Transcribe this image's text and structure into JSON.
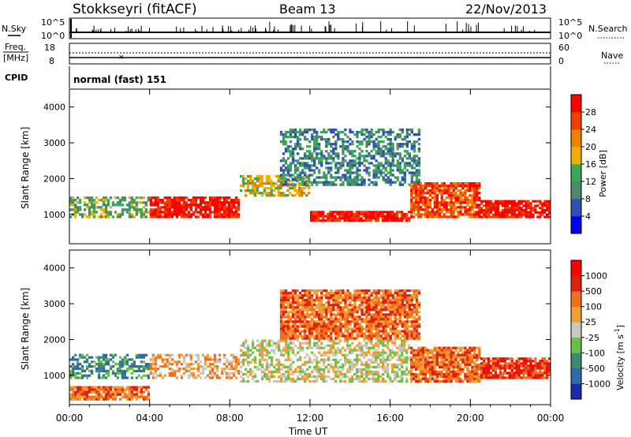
{
  "header": {
    "station": "Stokkseyri (fitACF)",
    "beam": "Beam 13",
    "date": "22/Nov/2013"
  },
  "top_panels": {
    "nsky_label": "N.Sky",
    "nsky_ticks": [
      "10^5",
      "10^0"
    ],
    "nsearch_label": "N.Search",
    "nsearch_ticks": [
      "10^5",
      "10^0"
    ],
    "freq_label_1": "Freq.",
    "freq_label_2": "[MHz]",
    "freq_ticks": [
      "18",
      "8"
    ],
    "nave_label": "Nave",
    "nave_ticks": [
      "60",
      "0"
    ],
    "cpid_label": "CPID",
    "cpid_value": "normal (fast) 151"
  },
  "colors": {
    "power": [
      "#0000ff",
      "#2f4fb4",
      "#4a8a6a",
      "#3aa858",
      "#f0b000",
      "#f08000",
      "#f04000",
      "#ff0000"
    ],
    "velocity": [
      "#1a2bb0",
      "#2f6aa8",
      "#3a8a70",
      "#6ac048",
      "#c8c8c0",
      "#f0a030",
      "#f07020",
      "#e02010",
      "#ff0000"
    ]
  },
  "chart_data": [
    {
      "type": "heatmap",
      "ylabel": "Slant Range [km]",
      "ylim": [
        180,
        4500
      ],
      "yticks": [
        1000,
        2000,
        3000,
        4000
      ],
      "x_categories": [
        "00:00",
        "04:00",
        "08:00",
        "12:00",
        "16:00",
        "20:00",
        "00:00"
      ],
      "colorbar_label": "Power [dB]",
      "colorbar_ticks": [
        "28",
        "24",
        "20",
        "16",
        "12",
        "8",
        "4"
      ],
      "echo_regions": [
        {
          "t_start": 0.0,
          "t_end": 4.0,
          "r_low": 900,
          "r_high": 1500,
          "level": 3
        },
        {
          "t_start": 4.0,
          "t_end": 8.5,
          "r_low": 900,
          "r_high": 1500,
          "level": 7
        },
        {
          "t_start": 8.5,
          "t_end": 12.0,
          "r_low": 1500,
          "r_high": 2100,
          "level": 4
        },
        {
          "t_start": 12.0,
          "t_end": 17.0,
          "r_low": 800,
          "r_high": 1100,
          "level": 7
        },
        {
          "t_start": 10.5,
          "t_end": 17.5,
          "r_low": 1800,
          "r_high": 3400,
          "level": 2
        },
        {
          "t_start": 17.0,
          "t_end": 20.5,
          "r_low": 900,
          "r_high": 1900,
          "level": 6
        },
        {
          "t_start": 20.5,
          "t_end": 24.0,
          "r_low": 900,
          "r_high": 1400,
          "level": 7
        }
      ]
    },
    {
      "type": "heatmap",
      "ylabel": "Slant Range [km]",
      "xlabel": "Time UT",
      "ylim": [
        180,
        4500
      ],
      "yticks": [
        1000,
        2000,
        3000,
        4000
      ],
      "x_categories": [
        "00:00",
        "04:00",
        "08:00",
        "12:00",
        "16:00",
        "20:00",
        "00:00"
      ],
      "colorbar_label": "Velocity [m s^-1]",
      "colorbar_ticks": [
        "1000",
        "500",
        "100",
        "25",
        "-25",
        "-100",
        "-500",
        "-1000"
      ],
      "echo_regions": [
        {
          "t_start": 0.0,
          "t_end": 4.0,
          "r_low": 900,
          "r_high": 1600,
          "level": 2
        },
        {
          "t_start": 0.0,
          "t_end": 4.0,
          "r_low": 300,
          "r_high": 700,
          "level": 6
        },
        {
          "t_start": 4.0,
          "t_end": 8.5,
          "r_low": 900,
          "r_high": 1600,
          "level": 5
        },
        {
          "t_start": 8.5,
          "t_end": 17.0,
          "r_low": 800,
          "r_high": 2000,
          "level": 4
        },
        {
          "t_start": 10.5,
          "t_end": 17.5,
          "r_low": 2000,
          "r_high": 3400,
          "level": 6
        },
        {
          "t_start": 17.0,
          "t_end": 20.5,
          "r_low": 800,
          "r_high": 1800,
          "level": 6
        },
        {
          "t_start": 20.5,
          "t_end": 24.0,
          "r_low": 900,
          "r_high": 1500,
          "level": 7
        }
      ]
    }
  ]
}
